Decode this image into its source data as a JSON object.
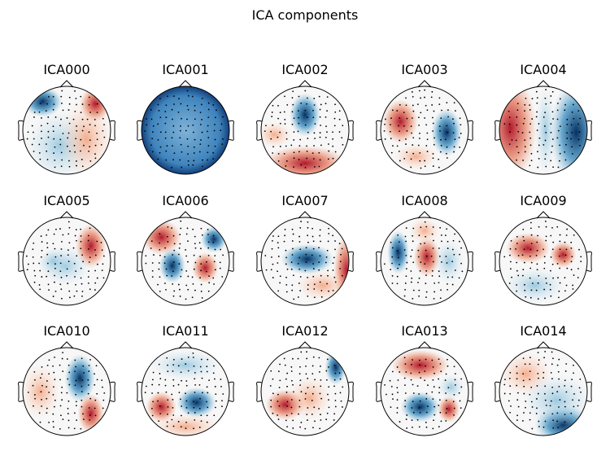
{
  "title": "ICA components",
  "components": [
    "ICA000",
    "ICA001",
    "ICA002",
    "ICA003",
    "ICA004",
    "ICA005",
    "ICA006",
    "ICA007",
    "ICA008",
    "ICA009",
    "ICA010",
    "ICA011",
    "ICA012",
    "ICA013",
    "ICA014"
  ]
}
